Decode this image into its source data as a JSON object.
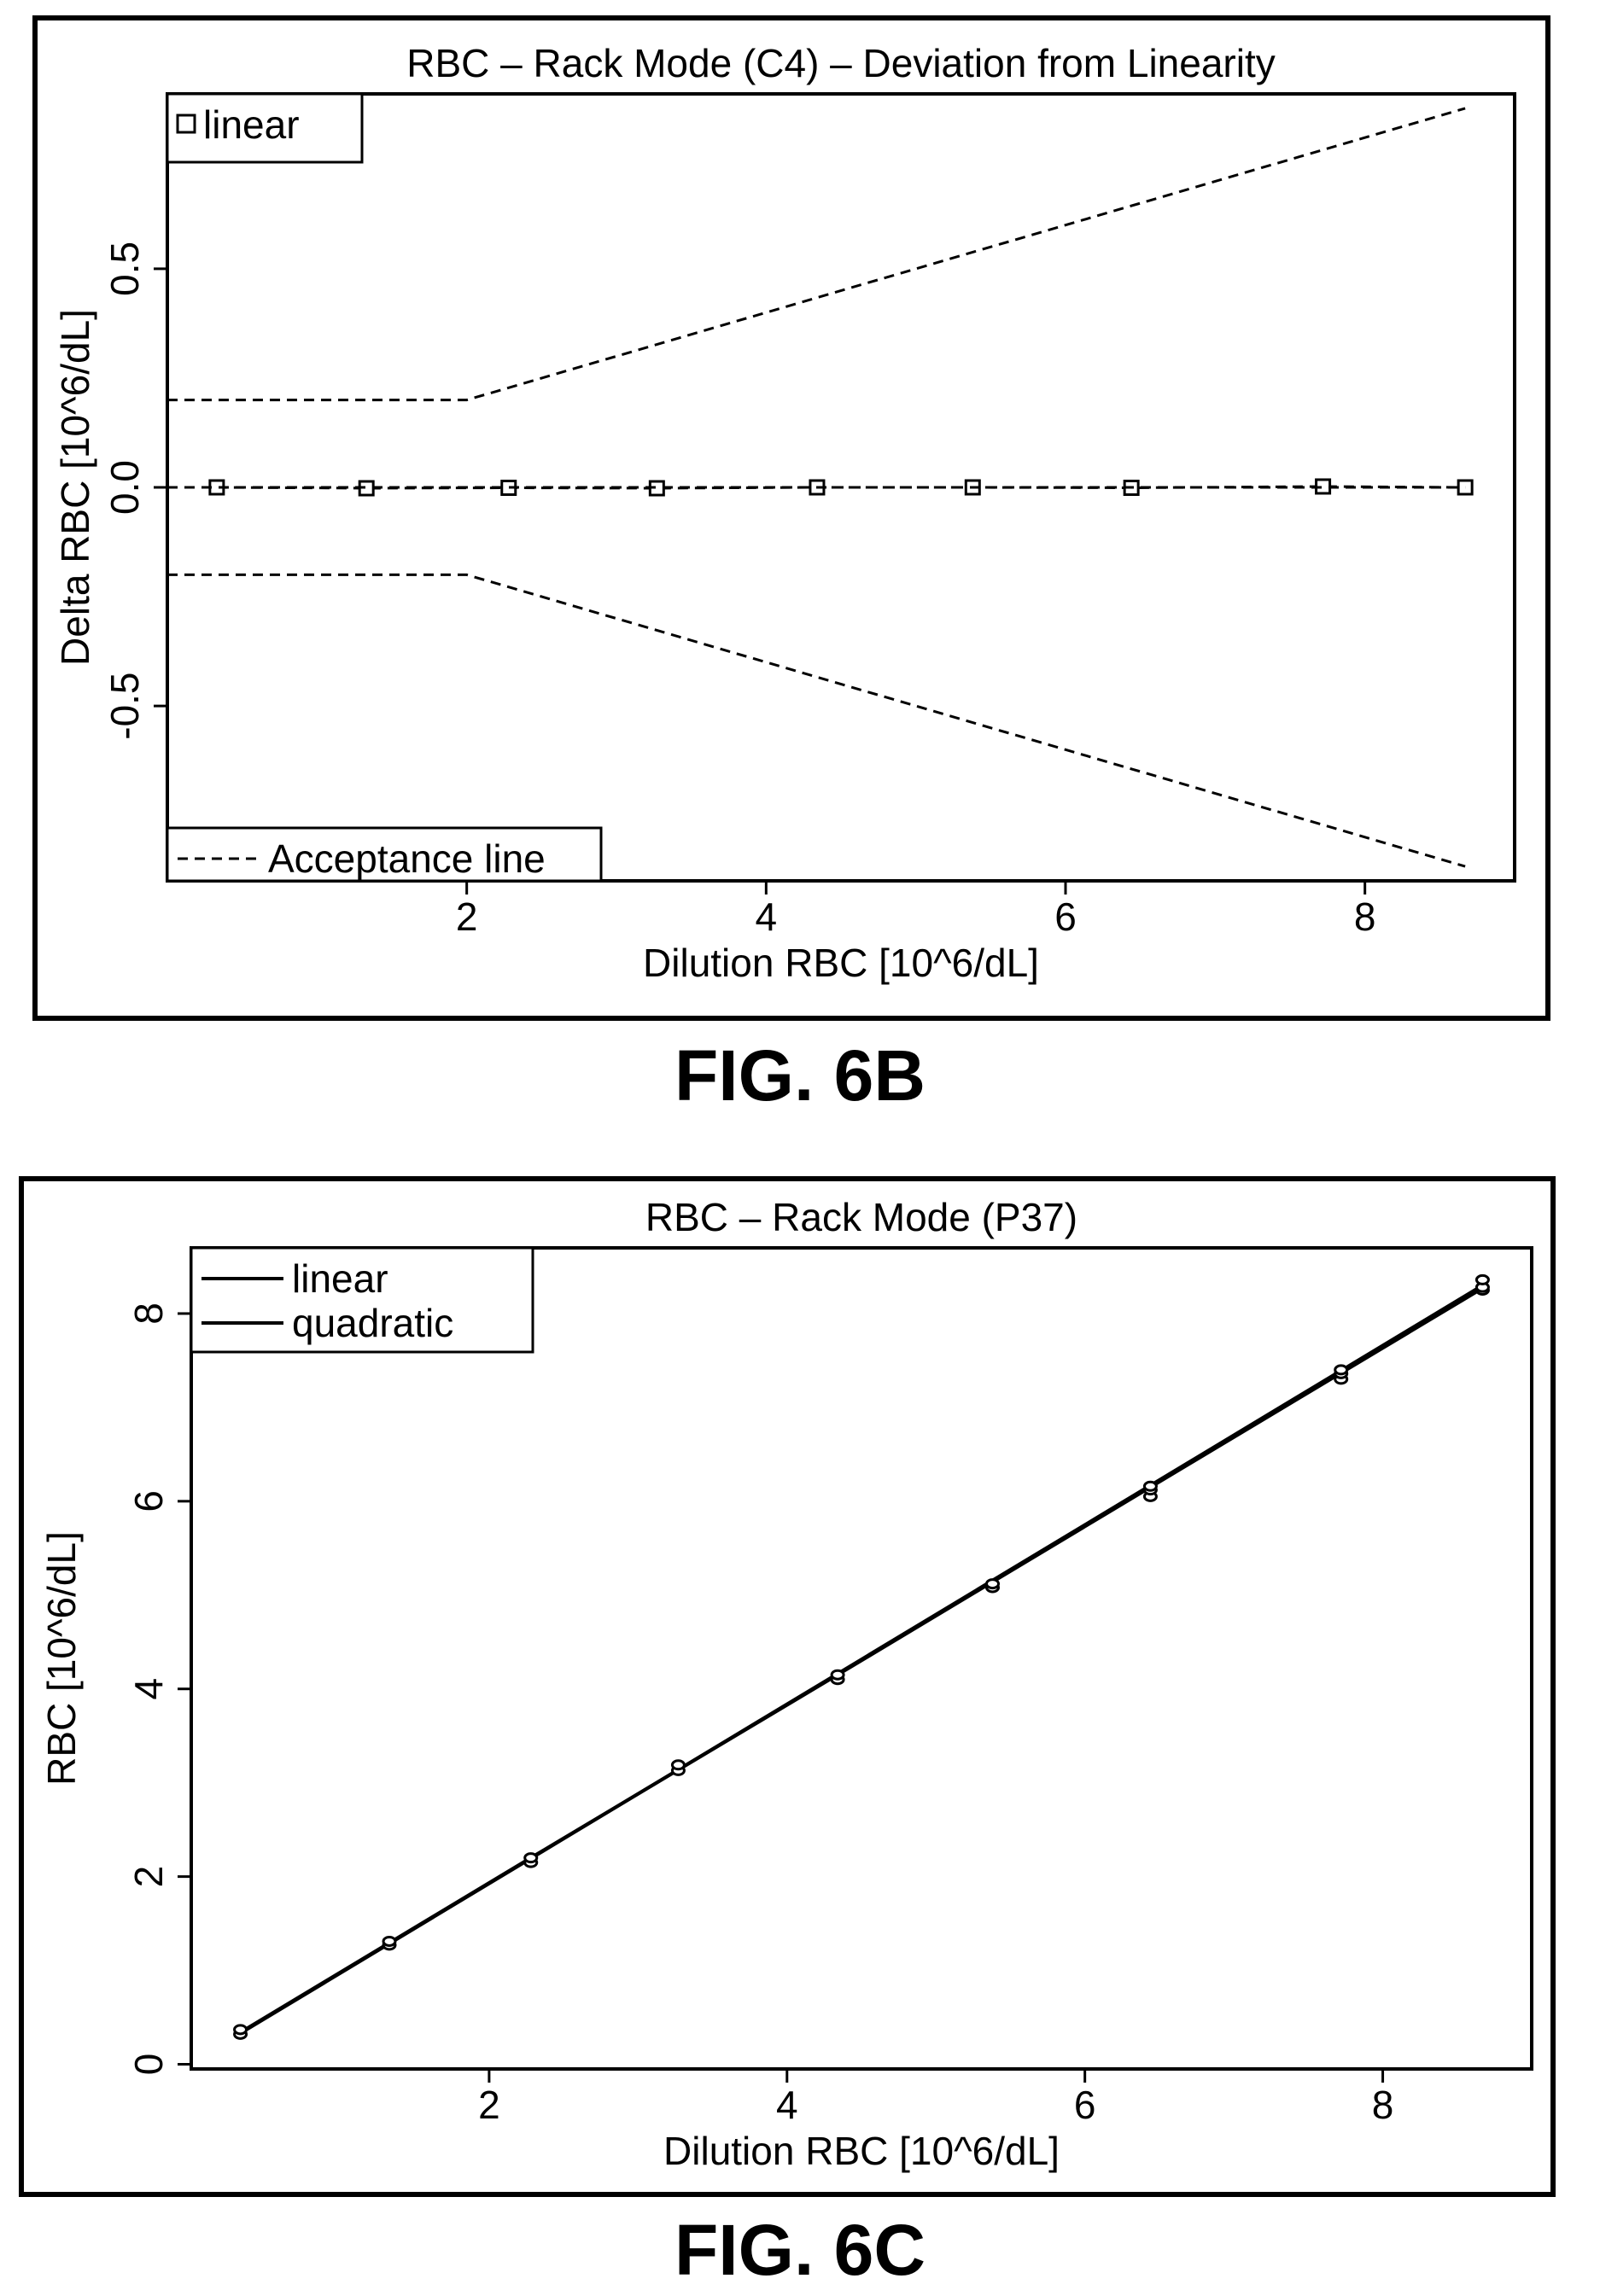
{
  "captions": {
    "fig6b": "FIG. 6B",
    "fig6c": "FIG. 6C"
  },
  "chart_data": [
    {
      "type": "line",
      "title": "RBC – Rack Mode (C4) – Deviation from Linearity",
      "xlabel": "Dilution RBC [10^6/dL]",
      "ylabel": "Delta RBC [10^6/dL]",
      "xlim": [
        0,
        9
      ],
      "ylim": [
        -0.9,
        0.9
      ],
      "xticks": [
        2,
        4,
        6,
        8
      ],
      "yticks": [
        -0.5,
        0.0,
        0.5
      ],
      "ytick_labels": [
        "-0.5",
        "0.0",
        "0.5"
      ],
      "grid": false,
      "legends": [
        {
          "placement": "top-left",
          "entries": [
            {
              "label": "linear",
              "marker": "square"
            }
          ]
        },
        {
          "placement": "bottom-left",
          "entries": [
            {
              "label": "Acceptance line",
              "style": "dashed"
            }
          ]
        }
      ],
      "series": [
        {
          "name": "linear",
          "style": "dashed-with-square-markers",
          "x": [
            0.33,
            1.33,
            2.28,
            3.27,
            4.34,
            5.38,
            6.44,
            7.72,
            8.67
          ],
          "y": [
            0.0,
            -0.002,
            -0.001,
            -0.002,
            0.0,
            0.0,
            -0.001,
            0.002,
            0.0
          ]
        },
        {
          "name": "Acceptance line",
          "style": "dashed",
          "x": [
            0.0,
            2.0,
            8.67
          ],
          "y": [
            0.2,
            0.2,
            0.867
          ]
        },
        {
          "name": "Acceptance line",
          "style": "dashed",
          "x": [
            0.0,
            2.0,
            8.67
          ],
          "y": [
            -0.2,
            -0.2,
            -0.867
          ]
        },
        {
          "name": "",
          "style": "dashed",
          "x": [
            0.0,
            8.67
          ],
          "y": [
            0.0,
            0.0
          ]
        }
      ]
    },
    {
      "type": "line",
      "title": "RBC – Rack Mode (P37)",
      "xlabel": "Dilution RBC [10^6/dL]",
      "ylabel": "RBC [10^6/dL]",
      "xlim": [
        0,
        9
      ],
      "ylim": [
        -0.05,
        8.7
      ],
      "xticks": [
        2,
        4,
        6,
        8
      ],
      "yticks": [
        0,
        2,
        4,
        6,
        8
      ],
      "grid": false,
      "legends": [
        {
          "placement": "top-left",
          "entries": [
            {
              "label": "linear",
              "style": "solid"
            },
            {
              "label": "quadratic",
              "style": "solid"
            }
          ]
        }
      ],
      "series": [
        {
          "name": "linear",
          "style": "solid",
          "x": [
            0.33,
            8.67
          ],
          "y": [
            0.33,
            8.3
          ]
        },
        {
          "name": "quadratic",
          "style": "solid",
          "x": [
            0.33,
            2.28,
            4.34,
            6.44,
            8.67
          ],
          "y": [
            0.34,
            2.2,
            4.15,
            6.15,
            8.27
          ]
        },
        {
          "name": "",
          "style": "points",
          "x": [
            0.33,
            0.33,
            1.33,
            1.33,
            2.28,
            2.28,
            3.27,
            3.27,
            4.34,
            4.34,
            5.38,
            5.38,
            6.44,
            6.44,
            6.44,
            7.72,
            7.72,
            7.72,
            8.67,
            8.67,
            8.67
          ],
          "y": [
            0.32,
            0.37,
            1.27,
            1.31,
            2.15,
            2.2,
            3.13,
            3.19,
            4.1,
            4.15,
            5.08,
            5.12,
            6.05,
            6.12,
            6.16,
            7.3,
            7.36,
            7.4,
            8.25,
            8.28,
            8.36
          ]
        }
      ]
    }
  ]
}
